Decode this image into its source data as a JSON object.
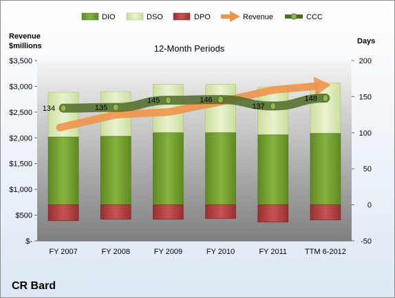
{
  "chart_data": {
    "type": "bar",
    "title": "12-Month Periods",
    "categories": [
      "FY 2007",
      "FY 2008",
      "FY 2009",
      "FY 2010",
      "FY 2011",
      "TTM 6-2012"
    ],
    "y_left": {
      "label_line1": "Revenue",
      "label_line2": "$millions",
      "ylim": [
        0,
        3500
      ],
      "ticks": [
        0,
        500,
        1000,
        1500,
        2000,
        2500,
        3000,
        3500
      ],
      "tick_labels": [
        "$-",
        "$500",
        "$1,000",
        "$1,500",
        "$2,000",
        "$2,500",
        "$3,000",
        "$3,500"
      ]
    },
    "y_right": {
      "label": "Days",
      "ylim": [
        -50,
        200
      ],
      "ticks": [
        -50,
        0,
        50,
        100,
        150,
        200
      ],
      "tick_labels": [
        "-50",
        "0",
        "50",
        "100",
        "150",
        "200"
      ]
    },
    "legend_position": "top",
    "series": [
      {
        "name": "DIO",
        "axis": "right",
        "kind": "stacked-bar",
        "color": "#76a034",
        "values": [
          94,
          95,
          100,
          100,
          97,
          99
        ]
      },
      {
        "name": "DSO",
        "axis": "right",
        "kind": "stacked-bar",
        "color": "#dbeab8",
        "values": [
          62,
          62,
          67,
          67,
          66,
          70
        ]
      },
      {
        "name": "DPO",
        "axis": "right",
        "kind": "negative-bar",
        "color": "#b23c3c",
        "values": [
          -22,
          -20,
          -20,
          -19,
          -24,
          -21
        ]
      },
      {
        "name": "Revenue",
        "axis": "left",
        "kind": "arrow-line",
        "color": "#f0934a",
        "values": [
          2200,
          2450,
          2500,
          2700,
          2930,
          3020
        ]
      },
      {
        "name": "CCC",
        "axis": "right",
        "kind": "line",
        "color": "#4f6b28",
        "values": [
          134,
          135,
          145,
          146,
          137,
          148
        ],
        "data_labels": [
          "134",
          "135",
          "145",
          "146",
          "137",
          "148"
        ]
      }
    ],
    "grid": false
  },
  "company": "CR Bard"
}
